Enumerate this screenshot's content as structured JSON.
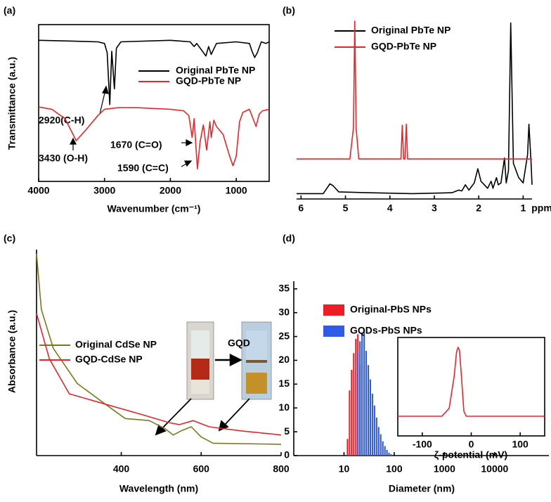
{
  "chart_data": [
    {
      "type": "line",
      "label": "(a)",
      "ylabel": "Transmittance (a.u.)",
      "xlabel": "Wavenumber (cm⁻¹)",
      "xlim": [
        4000,
        500
      ],
      "xticks": [
        4000,
        3000,
        2000,
        1000
      ],
      "ylim": [
        0,
        10
      ],
      "annotations": [
        "2920(C-H)",
        "3430 (O-H)",
        "1670 (C=O)",
        "1590 (C=C)"
      ],
      "series": [
        {
          "name": "Original PbTe NP",
          "color": "#000000",
          "x": [
            4000,
            3500,
            3100,
            3000,
            2960,
            2920,
            2890,
            2850,
            2820,
            2750,
            2000,
            1700,
            1640,
            1600,
            1460,
            1420,
            1380,
            1300,
            1000,
            800,
            760,
            720,
            680,
            620,
            550,
            500
          ],
          "values": [
            9.0,
            8.95,
            8.9,
            8.8,
            8.2,
            4.9,
            8.3,
            5.9,
            8.5,
            8.9,
            9.0,
            8.9,
            8.6,
            8.8,
            8.0,
            8.6,
            8.1,
            8.8,
            8.9,
            8.8,
            8.3,
            7.9,
            8.2,
            8.9,
            8.8,
            8.9
          ]
        },
        {
          "name": "GQD-PbTe NP",
          "color": "#e8262a",
          "x": [
            4000,
            3800,
            3600,
            3430,
            3300,
            3100,
            3000,
            2800,
            2500,
            2000,
            1800,
            1720,
            1670,
            1640,
            1590,
            1550,
            1500,
            1450,
            1400,
            1380,
            1340,
            1300,
            1200,
            1100,
            1050,
            1000,
            950,
            900,
            800,
            700,
            650,
            600,
            500
          ],
          "values": [
            4.75,
            4.6,
            4.0,
            2.6,
            3.2,
            4.2,
            4.6,
            4.7,
            4.7,
            4.6,
            4.5,
            4.2,
            2.8,
            4.0,
            0.8,
            2.5,
            3.6,
            2.0,
            3.8,
            2.8,
            3.9,
            3.5,
            3.0,
            1.6,
            1.0,
            1.6,
            3.8,
            4.4,
            4.6,
            3.5,
            4.3,
            4.5,
            4.6
          ]
        }
      ]
    },
    {
      "type": "line",
      "label": "(b)",
      "xlabel": "ppm",
      "xlim": [
        6.1,
        0.8
      ],
      "xticks": [
        6,
        5,
        4,
        3,
        2,
        1
      ],
      "ylim": [
        0,
        10
      ],
      "series": [
        {
          "name": "Original PbTe NP",
          "color": "#000000",
          "x": [
            6.1,
            5.5,
            5.35,
            5.28,
            5.15,
            4.5,
            3.5,
            2.6,
            2.45,
            2.38,
            2.3,
            2.22,
            2.1,
            2.02,
            1.95,
            1.8,
            1.72,
            1.68,
            1.6,
            1.56,
            1.5,
            1.42,
            1.38,
            1.33,
            1.28,
            1.22,
            1.1,
            1.0,
            0.9,
            0.87,
            0.82,
            0.8
          ],
          "values": [
            0.3,
            0.3,
            0.85,
            0.75,
            0.4,
            0.35,
            0.3,
            0.35,
            0.5,
            0.45,
            0.8,
            0.5,
            0.9,
            1.7,
            1.0,
            0.6,
            1.0,
            0.6,
            1.2,
            0.8,
            0.9,
            2.3,
            0.9,
            1.6,
            9.9,
            2.0,
            1.2,
            0.9,
            2.5,
            4.2,
            2.0,
            0.8
          ]
        },
        {
          "name": "GQD-PbTe NP",
          "color": "#e8262a",
          "x": [
            6.1,
            4.9,
            4.82,
            4.79,
            4.76,
            4.7,
            3.75,
            3.72,
            3.69,
            3.66,
            3.63,
            3.6,
            0.8
          ],
          "values": [
            2.25,
            2.25,
            4.0,
            10,
            4.0,
            2.25,
            2.25,
            4.15,
            2.25,
            2.25,
            4.2,
            2.25,
            2.25
          ]
        }
      ]
    },
    {
      "type": "line",
      "label": "(c)",
      "ylabel": "Absorbance (a.u.)",
      "xlabel": "Wavelength (nm)",
      "xlim": [
        188,
        800
      ],
      "xticks": [
        400,
        600,
        800
      ],
      "ylim": [
        0,
        10
      ],
      "annotations": [
        "GQD"
      ],
      "series": [
        {
          "name": "Original CdSe NP",
          "color": "#7a7a1a",
          "x": [
            188,
            200,
            230,
            290,
            360,
            410,
            470,
            510,
            530,
            550,
            575,
            600,
            630,
            800
          ],
          "values": [
            9.8,
            7.1,
            5.2,
            3.5,
            2.5,
            1.8,
            1.7,
            1.3,
            1.0,
            1.2,
            1.4,
            0.9,
            0.6,
            0.55
          ]
        },
        {
          "name": "GQD-CdSe NP",
          "color": "#e8262a",
          "x": [
            188,
            220,
            270,
            360,
            450,
            520,
            545,
            580,
            620,
            700,
            800
          ],
          "values": [
            6.9,
            4.7,
            3.0,
            2.5,
            2.0,
            1.6,
            1.5,
            1.7,
            1.4,
            1.2,
            1.0
          ]
        }
      ]
    },
    {
      "type": "histogram",
      "label": "(d)",
      "xlabel": "Diameter (nm)",
      "xscale": "log",
      "xlim": [
        1,
        120000
      ],
      "xticks": [
        10,
        100,
        1000,
        10000
      ],
      "ylim": [
        0,
        36.6
      ],
      "yticks": [
        0,
        5,
        10,
        15,
        20,
        25,
        30,
        35
      ],
      "series": [
        {
          "name": "Original-PbS NPs",
          "color": "#ee1c25",
          "bins": [
            11.2,
            12.3,
            13.5,
            14.9,
            16.4,
            18,
            19.8,
            21.8
          ],
          "values": [
            3.5,
            13.7,
            18,
            21.5,
            24.5,
            25.5,
            19
          ]
        },
        {
          "name": "GQDs-PbS NPs",
          "color": "#2f5be8",
          "bins": [
            18,
            19.8,
            21.8,
            24,
            26.4,
            29,
            31.9,
            35.1,
            38.6,
            42.5,
            46.7,
            51.4,
            56.5,
            62.2,
            68.4,
            75.2,
            82.7,
            91
          ],
          "values": [
            21.5,
            24,
            25.8,
            26.5,
            22,
            19,
            16,
            13,
            10.5,
            8,
            6,
            4.5,
            3,
            2,
            1.2,
            0.6,
            0.3
          ]
        }
      ]
    },
    {
      "type": "line",
      "xlabel": "ζ-potential (mV)",
      "xlim": [
        -150,
        150
      ],
      "xticks": [
        -100,
        0,
        100
      ],
      "ylim": [
        0,
        10
      ],
      "series": [
        {
          "color": "#e8262a",
          "x": [
            -150,
            -60,
            -45,
            -35,
            -30,
            -27,
            -24,
            -20,
            -15,
            -10,
            150
          ],
          "values": [
            2,
            2,
            2.8,
            6,
            8.5,
            9,
            8.7,
            6,
            2.5,
            2,
            2
          ]
        }
      ]
    }
  ]
}
